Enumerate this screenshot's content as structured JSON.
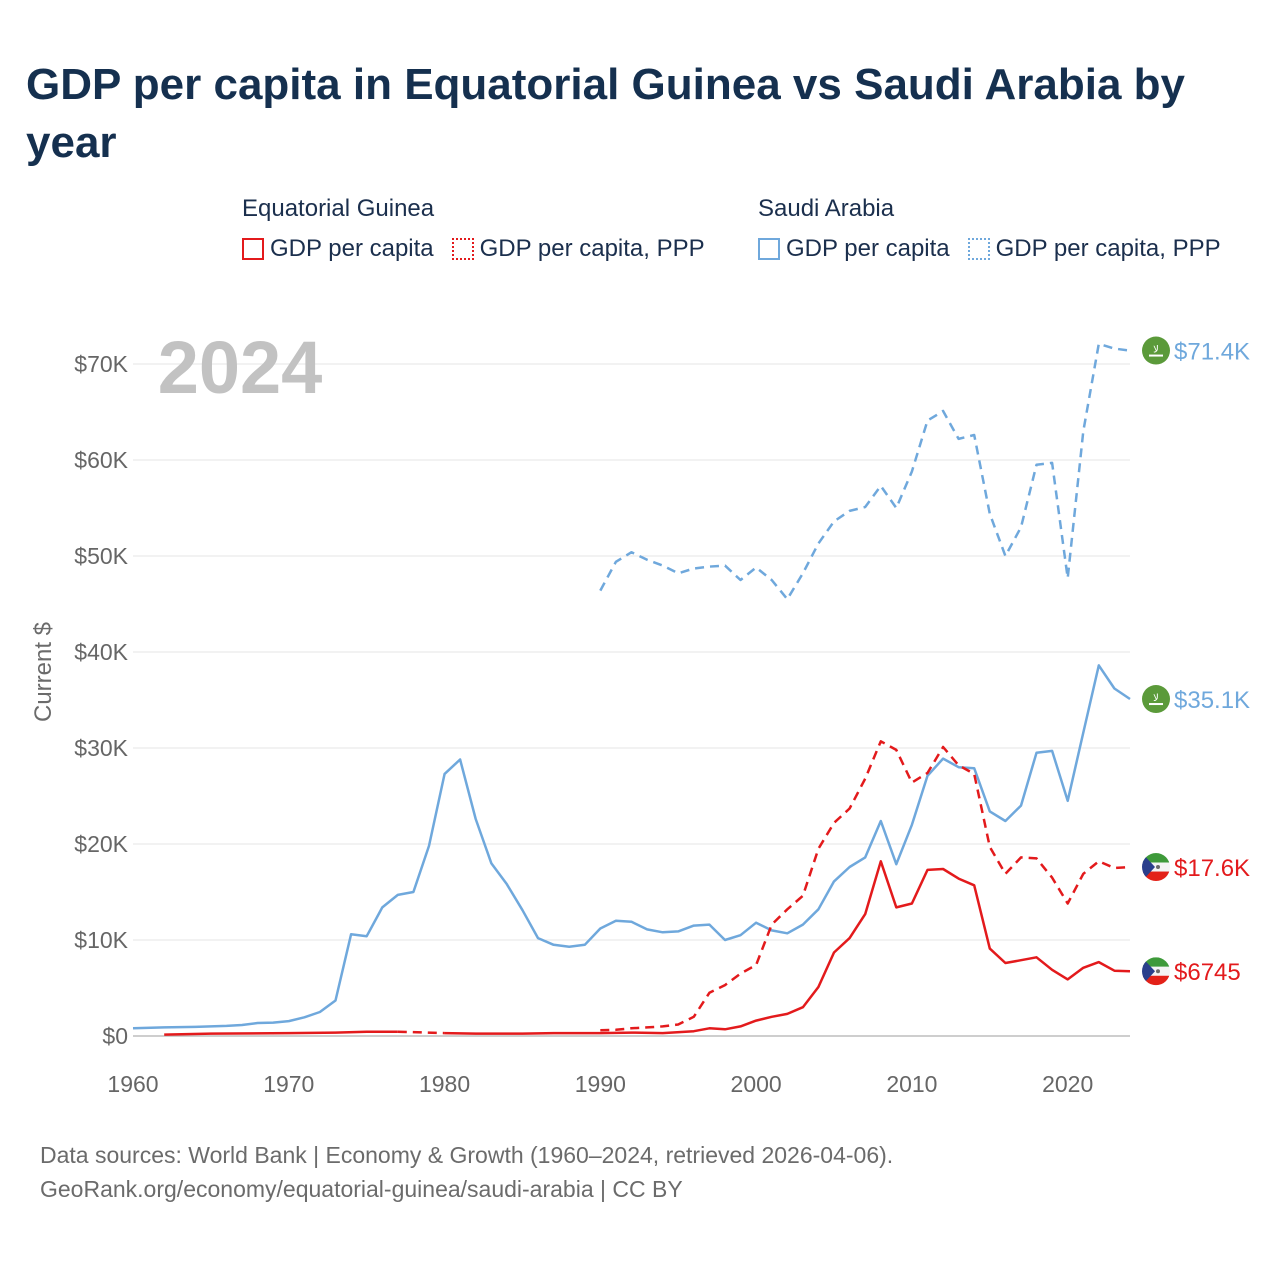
{
  "title": "GDP per capita in Equatorial Guinea vs Saudi Arabia by year",
  "legend": {
    "groups": [
      {
        "name": "Equatorial Guinea",
        "items": [
          {
            "label": "GDP per capita",
            "color": "#e31a1c",
            "style": "solid"
          },
          {
            "label": "GDP per capita, PPP",
            "color": "#e31a1c",
            "style": "dotted"
          }
        ]
      },
      {
        "name": "Saudi Arabia",
        "items": [
          {
            "label": "GDP per capita",
            "color": "#6fa8dc",
            "style": "solid"
          },
          {
            "label": "GDP per capita, PPP",
            "color": "#6fa8dc",
            "style": "dotted"
          }
        ]
      }
    ]
  },
  "chart_data": {
    "type": "line",
    "title": "GDP per capita in Equatorial Guinea vs Saudi Arabia by year",
    "year_label": "2024",
    "xlabel": "",
    "ylabel": "Current $",
    "xlim": [
      1960,
      2024
    ],
    "ylim": [
      0,
      70000
    ],
    "x_ticks": [
      1960,
      1970,
      1980,
      1990,
      2000,
      2010,
      2020
    ],
    "x_tick_labels": [
      "1960",
      "1970",
      "1980",
      "1990",
      "2000",
      "2010",
      "2020"
    ],
    "y_ticks": [
      0,
      10000,
      20000,
      30000,
      40000,
      50000,
      60000,
      70000
    ],
    "y_tick_labels": [
      "$0",
      "$10K",
      "$20K",
      "$30K",
      "$40K",
      "$50K",
      "$60K",
      "$70K"
    ],
    "grid": true,
    "series": [
      {
        "name": "Saudi Arabia GDP per capita, PPP",
        "color": "#6fa8dc",
        "dash": "dashed",
        "end_label": "$71.4K",
        "flag": "saudi-arabia",
        "points": [
          [
            1990,
            46400
          ],
          [
            1991,
            49400
          ],
          [
            1992,
            50400
          ],
          [
            1993,
            49600
          ],
          [
            1994,
            49000
          ],
          [
            1995,
            48200
          ],
          [
            1996,
            48700
          ],
          [
            1997,
            48900
          ],
          [
            1998,
            49000
          ],
          [
            1999,
            47500
          ],
          [
            2000,
            48800
          ],
          [
            2001,
            47500
          ],
          [
            2002,
            45500
          ],
          [
            2003,
            48200
          ],
          [
            2004,
            51300
          ],
          [
            2005,
            53600
          ],
          [
            2006,
            54700
          ],
          [
            2007,
            55100
          ],
          [
            2008,
            57300
          ],
          [
            2009,
            55000
          ],
          [
            2010,
            58800
          ],
          [
            2011,
            64100
          ],
          [
            2012,
            65100
          ],
          [
            2013,
            62200
          ],
          [
            2014,
            62600
          ],
          [
            2015,
            54400
          ],
          [
            2016,
            50000
          ],
          [
            2017,
            53000
          ],
          [
            2018,
            59500
          ],
          [
            2019,
            59700
          ],
          [
            2020,
            47700
          ],
          [
            2021,
            63000
          ],
          [
            2022,
            72100
          ],
          [
            2023,
            71600
          ],
          [
            2024,
            71400
          ]
        ]
      },
      {
        "name": "Saudi Arabia GDP per capita",
        "color": "#6fa8dc",
        "dash": "solid",
        "end_label": "$35.1K",
        "flag": "saudi-arabia",
        "points": [
          [
            1960,
            800
          ],
          [
            1962,
            900
          ],
          [
            1964,
            950
          ],
          [
            1966,
            1050
          ],
          [
            1967,
            1150
          ],
          [
            1968,
            1350
          ],
          [
            1969,
            1400
          ],
          [
            1970,
            1550
          ],
          [
            1971,
            1950
          ],
          [
            1972,
            2500
          ],
          [
            1973,
            3700
          ],
          [
            1974,
            10600
          ],
          [
            1975,
            10400
          ],
          [
            1976,
            13400
          ],
          [
            1977,
            14700
          ],
          [
            1978,
            15000
          ],
          [
            1979,
            19800
          ],
          [
            1980,
            27300
          ],
          [
            1981,
            28800
          ],
          [
            1982,
            22600
          ],
          [
            1983,
            18000
          ],
          [
            1984,
            15800
          ],
          [
            1985,
            13100
          ],
          [
            1986,
            10200
          ],
          [
            1987,
            9500
          ],
          [
            1988,
            9300
          ],
          [
            1989,
            9500
          ],
          [
            1990,
            11200
          ],
          [
            1991,
            12000
          ],
          [
            1992,
            11900
          ],
          [
            1993,
            11100
          ],
          [
            1994,
            10800
          ],
          [
            1995,
            10900
          ],
          [
            1996,
            11500
          ],
          [
            1997,
            11600
          ],
          [
            1998,
            10000
          ],
          [
            1999,
            10500
          ],
          [
            2000,
            11800
          ],
          [
            2001,
            11000
          ],
          [
            2002,
            10700
          ],
          [
            2003,
            11600
          ],
          [
            2004,
            13200
          ],
          [
            2005,
            16100
          ],
          [
            2006,
            17600
          ],
          [
            2007,
            18600
          ],
          [
            2008,
            22400
          ],
          [
            2009,
            17900
          ],
          [
            2010,
            22000
          ],
          [
            2011,
            27100
          ],
          [
            2012,
            28900
          ],
          [
            2013,
            28000
          ],
          [
            2014,
            27900
          ],
          [
            2015,
            23400
          ],
          [
            2016,
            22400
          ],
          [
            2017,
            24000
          ],
          [
            2018,
            29500
          ],
          [
            2019,
            29700
          ],
          [
            2020,
            24500
          ],
          [
            2021,
            31600
          ],
          [
            2022,
            38600
          ],
          [
            2023,
            36200
          ],
          [
            2024,
            35100
          ]
        ]
      },
      {
        "name": "Equatorial Guinea GDP per capita, PPP",
        "color": "#e31a1c",
        "dash": "dashed",
        "end_label": "$17.6K",
        "flag": "equatorial-guinea",
        "points": [
          [
            1990,
            600
          ],
          [
            1991,
            650
          ],
          [
            1992,
            800
          ],
          [
            1993,
            900
          ],
          [
            1994,
            1000
          ],
          [
            1995,
            1200
          ],
          [
            1996,
            2000
          ],
          [
            1997,
            4500
          ],
          [
            1998,
            5300
          ],
          [
            1999,
            6500
          ],
          [
            2000,
            7400
          ],
          [
            2001,
            11600
          ],
          [
            2002,
            13200
          ],
          [
            2003,
            14600
          ],
          [
            2004,
            19500
          ],
          [
            2005,
            22200
          ],
          [
            2006,
            23700
          ],
          [
            2007,
            26800
          ],
          [
            2008,
            30700
          ],
          [
            2009,
            29800
          ],
          [
            2010,
            26400
          ],
          [
            2011,
            27400
          ],
          [
            2012,
            30100
          ],
          [
            2013,
            28200
          ],
          [
            2014,
            27300
          ],
          [
            2015,
            19700
          ],
          [
            2016,
            16900
          ],
          [
            2017,
            18600
          ],
          [
            2018,
            18500
          ],
          [
            2019,
            16500
          ],
          [
            2020,
            13800
          ],
          [
            2021,
            16900
          ],
          [
            2022,
            18200
          ],
          [
            2023,
            17500
          ],
          [
            2024,
            17600
          ]
        ]
      },
      {
        "name": "Equatorial Guinea GDP per capita",
        "color": "#e31a1c",
        "dash": "solid",
        "gap_dashed": [
          1977,
          1980
        ],
        "end_label": "$6745",
        "flag": "equatorial-guinea",
        "points": [
          [
            1962,
            150
          ],
          [
            1965,
            250
          ],
          [
            1970,
            300
          ],
          [
            1973,
            350
          ],
          [
            1975,
            450
          ],
          [
            1977,
            450
          ],
          [
            1980,
            300
          ],
          [
            1982,
            250
          ],
          [
            1985,
            250
          ],
          [
            1987,
            300
          ],
          [
            1990,
            300
          ],
          [
            1992,
            350
          ],
          [
            1994,
            300
          ],
          [
            1996,
            500
          ],
          [
            1997,
            800
          ],
          [
            1998,
            700
          ],
          [
            1999,
            1000
          ],
          [
            2000,
            1600
          ],
          [
            2001,
            2000
          ],
          [
            2002,
            2300
          ],
          [
            2003,
            3000
          ],
          [
            2004,
            5100
          ],
          [
            2005,
            8700
          ],
          [
            2006,
            10200
          ],
          [
            2007,
            12700
          ],
          [
            2008,
            18200
          ],
          [
            2009,
            13400
          ],
          [
            2010,
            13800
          ],
          [
            2011,
            17300
          ],
          [
            2012,
            17400
          ],
          [
            2013,
            16400
          ],
          [
            2014,
            15700
          ],
          [
            2015,
            9100
          ],
          [
            2016,
            7600
          ],
          [
            2017,
            7900
          ],
          [
            2018,
            8200
          ],
          [
            2019,
            6900
          ],
          [
            2020,
            5900
          ],
          [
            2021,
            7100
          ],
          [
            2022,
            7700
          ],
          [
            2023,
            6800
          ],
          [
            2024,
            6745
          ]
        ]
      }
    ]
  },
  "footer": {
    "line1": "Data sources: World Bank | Economy & Growth (1960–2024, retrieved 2026-04-06).",
    "line2": "GeoRank.org/economy/equatorial-guinea/saudi-arabia | CC BY"
  }
}
